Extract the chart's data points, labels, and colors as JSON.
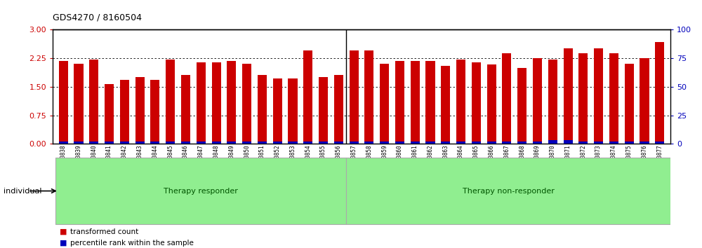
{
  "title": "GDS4270 / 8160504",
  "samples": [
    "GSM530838",
    "GSM530839",
    "GSM530840",
    "GSM530841",
    "GSM530842",
    "GSM530843",
    "GSM530844",
    "GSM530845",
    "GSM530846",
    "GSM530847",
    "GSM530848",
    "GSM530849",
    "GSM530850",
    "GSM530851",
    "GSM530852",
    "GSM530853",
    "GSM530854",
    "GSM530855",
    "GSM530856",
    "GSM530857",
    "GSM530858",
    "GSM530859",
    "GSM530860",
    "GSM530861",
    "GSM530862",
    "GSM530863",
    "GSM530864",
    "GSM530865",
    "GSM530866",
    "GSM530867",
    "GSM530868",
    "GSM530869",
    "GSM530870",
    "GSM530871",
    "GSM530872",
    "GSM530873",
    "GSM530874",
    "GSM530875",
    "GSM530876",
    "GSM530877"
  ],
  "red_values": [
    2.18,
    2.1,
    2.22,
    1.58,
    1.68,
    1.75,
    1.68,
    2.22,
    1.82,
    2.15,
    2.15,
    2.18,
    2.1,
    1.82,
    1.72,
    1.72,
    2.45,
    1.75,
    1.82,
    2.45,
    2.45,
    2.1,
    2.18,
    2.18,
    2.18,
    2.05,
    2.22,
    2.15,
    2.08,
    2.38,
    2.0,
    2.25,
    2.22,
    2.52,
    2.38,
    2.52,
    2.38,
    2.1,
    2.25,
    2.68
  ],
  "blue_values_pct": [
    2,
    2,
    2,
    2,
    2,
    2,
    2,
    2,
    2,
    2,
    2,
    2,
    2,
    2,
    2,
    2,
    2,
    2,
    2,
    2,
    2,
    2,
    2,
    2,
    2,
    2,
    2,
    2,
    2,
    2,
    2,
    2,
    3,
    3,
    2,
    2,
    2,
    2,
    2,
    2
  ],
  "responder_boundary": 19,
  "group1_label": "Therapy responder",
  "group2_label": "Therapy non-responder",
  "ylim_left": [
    0,
    3
  ],
  "ylim_right": [
    0,
    100
  ],
  "yticks_left": [
    0,
    0.75,
    1.5,
    2.25,
    3
  ],
  "yticks_right": [
    0,
    25,
    50,
    75,
    100
  ],
  "bar_color_red": "#cc0000",
  "bar_color_blue": "#0000bb",
  "group_bg": "#90EE90",
  "group_border": "#aaaaaa",
  "left_axis_color": "#cc0000",
  "right_axis_color": "#0000bb",
  "plot_bg": "#ffffff",
  "bar_width": 0.6,
  "individual_label": "individual"
}
